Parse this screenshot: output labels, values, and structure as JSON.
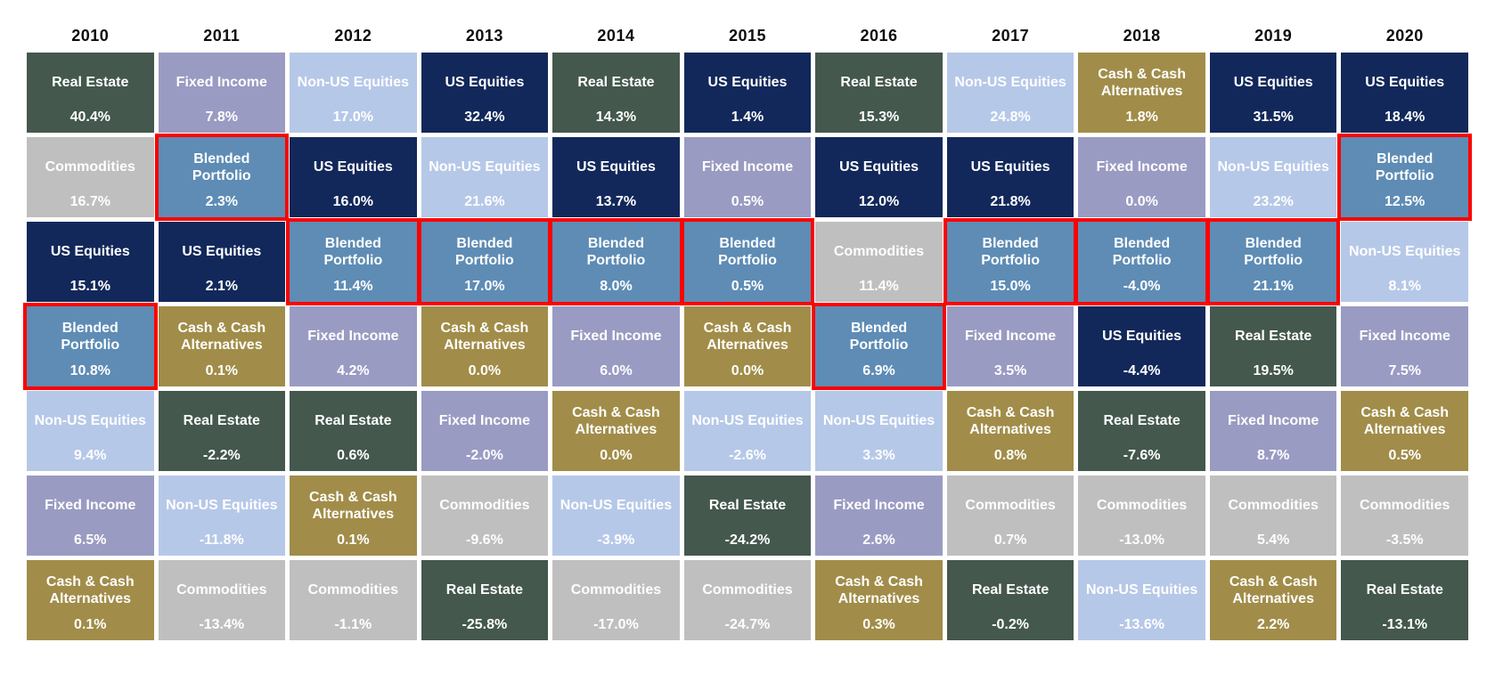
{
  "page": {
    "background_color": "#FFFFFF",
    "header_text_color": "#0D0D0D",
    "cell_text_color": "#FFFFFF"
  },
  "chart_data": {
    "type": "table",
    "description_layout": "asset-class-returns-quilt, columns are years, rows are performance rank",
    "highlight_border_color": "#FF0000",
    "highlighted_asset": "Blended Portfolio",
    "asset_colors": {
      "real-estate": "#44584E",
      "fixed-income": "#9A9BC2",
      "non-us-equities": "#B6C8E8",
      "us-equities": "#12285A",
      "commodities": "#BFBFBF",
      "cash": "#A18D49",
      "blended": "#5E8CB5"
    },
    "columns": [
      {
        "year": "2010",
        "cells": [
          {
            "label": "Real Estate",
            "value": "40.4%",
            "asset": "real-estate",
            "highlight": false
          },
          {
            "label": "Commodities",
            "value": "16.7%",
            "asset": "commodities",
            "highlight": false
          },
          {
            "label": "US Equities",
            "value": "15.1%",
            "asset": "us-equities",
            "highlight": false
          },
          {
            "label": "Blended Portfolio",
            "value": "10.8%",
            "asset": "blended",
            "highlight": true
          },
          {
            "label": "Non-US Equities",
            "value": "9.4%",
            "asset": "non-us-equities",
            "highlight": false
          },
          {
            "label": "Fixed Income",
            "value": "6.5%",
            "asset": "fixed-income",
            "highlight": false
          },
          {
            "label": "Cash & Cash Alternatives",
            "value": "0.1%",
            "asset": "cash",
            "highlight": false
          }
        ]
      },
      {
        "year": "2011",
        "cells": [
          {
            "label": "Fixed Income",
            "value": "7.8%",
            "asset": "fixed-income",
            "highlight": false
          },
          {
            "label": "Blended Portfolio",
            "value": "2.3%",
            "asset": "blended",
            "highlight": true
          },
          {
            "label": "US Equities",
            "value": "2.1%",
            "asset": "us-equities",
            "highlight": false
          },
          {
            "label": "Cash & Cash Alternatives",
            "value": "0.1%",
            "asset": "cash",
            "highlight": false
          },
          {
            "label": "Real Estate",
            "value": "-2.2%",
            "asset": "real-estate",
            "highlight": false
          },
          {
            "label": "Non-US Equities",
            "value": "-11.8%",
            "asset": "non-us-equities",
            "highlight": false
          },
          {
            "label": "Commodities",
            "value": "-13.4%",
            "asset": "commodities",
            "highlight": false
          }
        ]
      },
      {
        "year": "2012",
        "cells": [
          {
            "label": "Non-US Equities",
            "value": "17.0%",
            "asset": "non-us-equities",
            "highlight": false
          },
          {
            "label": "US Equities",
            "value": "16.0%",
            "asset": "us-equities",
            "highlight": false
          },
          {
            "label": "Blended Portfolio",
            "value": "11.4%",
            "asset": "blended",
            "highlight": true
          },
          {
            "label": "Fixed Income",
            "value": "4.2%",
            "asset": "fixed-income",
            "highlight": false
          },
          {
            "label": "Real Estate",
            "value": "0.6%",
            "asset": "real-estate",
            "highlight": false
          },
          {
            "label": "Cash & Cash Alternatives",
            "value": "0.1%",
            "asset": "cash",
            "highlight": false
          },
          {
            "label": "Commodities",
            "value": "-1.1%",
            "asset": "commodities",
            "highlight": false
          }
        ]
      },
      {
        "year": "2013",
        "cells": [
          {
            "label": "US Equities",
            "value": "32.4%",
            "asset": "us-equities",
            "highlight": false
          },
          {
            "label": "Non-US Equities",
            "value": "21.6%",
            "asset": "non-us-equities",
            "highlight": false
          },
          {
            "label": "Blended Portfolio",
            "value": "17.0%",
            "asset": "blended",
            "highlight": true
          },
          {
            "label": "Cash & Cash Alternatives",
            "value": "0.0%",
            "asset": "cash",
            "highlight": false
          },
          {
            "label": "Fixed Income",
            "value": "-2.0%",
            "asset": "fixed-income",
            "highlight": false
          },
          {
            "label": "Commodities",
            "value": "-9.6%",
            "asset": "commodities",
            "highlight": false
          },
          {
            "label": "Real Estate",
            "value": "-25.8%",
            "asset": "real-estate",
            "highlight": false
          }
        ]
      },
      {
        "year": "2014",
        "cells": [
          {
            "label": "Real Estate",
            "value": "14.3%",
            "asset": "real-estate",
            "highlight": false
          },
          {
            "label": "US Equities",
            "value": "13.7%",
            "asset": "us-equities",
            "highlight": false
          },
          {
            "label": "Blended Portfolio",
            "value": "8.0%",
            "asset": "blended",
            "highlight": true
          },
          {
            "label": "Fixed Income",
            "value": "6.0%",
            "asset": "fixed-income",
            "highlight": false
          },
          {
            "label": "Cash & Cash Alternatives",
            "value": "0.0%",
            "asset": "cash",
            "highlight": false
          },
          {
            "label": "Non-US Equities",
            "value": "-3.9%",
            "asset": "non-us-equities",
            "highlight": false
          },
          {
            "label": "Commodities",
            "value": "-17.0%",
            "asset": "commodities",
            "highlight": false
          }
        ]
      },
      {
        "year": "2015",
        "cells": [
          {
            "label": "US Equities",
            "value": "1.4%",
            "asset": "us-equities",
            "highlight": false
          },
          {
            "label": "Fixed Income",
            "value": "0.5%",
            "asset": "fixed-income",
            "highlight": false
          },
          {
            "label": "Blended Portfolio",
            "value": "0.5%",
            "asset": "blended",
            "highlight": true
          },
          {
            "label": "Cash & Cash Alternatives",
            "value": "0.0%",
            "asset": "cash",
            "highlight": false
          },
          {
            "label": "Non-US Equities",
            "value": "-2.6%",
            "asset": "non-us-equities",
            "highlight": false
          },
          {
            "label": "Real Estate",
            "value": "-24.2%",
            "asset": "real-estate",
            "highlight": false
          },
          {
            "label": "Commodities",
            "value": "-24.7%",
            "asset": "commodities",
            "highlight": false
          }
        ]
      },
      {
        "year": "2016",
        "cells": [
          {
            "label": "Real Estate",
            "value": "15.3%",
            "asset": "real-estate",
            "highlight": false
          },
          {
            "label": "US Equities",
            "value": "12.0%",
            "asset": "us-equities",
            "highlight": false
          },
          {
            "label": "Commodities",
            "value": "11.4%",
            "asset": "commodities",
            "highlight": false
          },
          {
            "label": "Blended Portfolio",
            "value": "6.9%",
            "asset": "blended",
            "highlight": true
          },
          {
            "label": "Non-US Equities",
            "value": "3.3%",
            "asset": "non-us-equities",
            "highlight": false
          },
          {
            "label": "Fixed Income",
            "value": "2.6%",
            "asset": "fixed-income",
            "highlight": false
          },
          {
            "label": "Cash & Cash Alternatives",
            "value": "0.3%",
            "asset": "cash",
            "highlight": false
          }
        ]
      },
      {
        "year": "2017",
        "cells": [
          {
            "label": "Non-US Equities",
            "value": "24.8%",
            "asset": "non-us-equities",
            "highlight": false
          },
          {
            "label": "US Equities",
            "value": "21.8%",
            "asset": "us-equities",
            "highlight": false
          },
          {
            "label": "Blended Portfolio",
            "value": "15.0%",
            "asset": "blended",
            "highlight": true
          },
          {
            "label": "Fixed Income",
            "value": "3.5%",
            "asset": "fixed-income",
            "highlight": false
          },
          {
            "label": "Cash & Cash Alternatives",
            "value": "0.8%",
            "asset": "cash",
            "highlight": false
          },
          {
            "label": "Commodities",
            "value": "0.7%",
            "asset": "commodities",
            "highlight": false
          },
          {
            "label": "Real Estate",
            "value": "-0.2%",
            "asset": "real-estate",
            "highlight": false
          }
        ]
      },
      {
        "year": "2018",
        "cells": [
          {
            "label": "Cash & Cash Alternatives",
            "value": "1.8%",
            "asset": "cash",
            "highlight": false
          },
          {
            "label": "Fixed Income",
            "value": "0.0%",
            "asset": "fixed-income",
            "highlight": false
          },
          {
            "label": "Blended Portfolio",
            "value": "-4.0%",
            "asset": "blended",
            "highlight": true
          },
          {
            "label": "US Equities",
            "value": "-4.4%",
            "asset": "us-equities",
            "highlight": false
          },
          {
            "label": "Real Estate",
            "value": "-7.6%",
            "asset": "real-estate",
            "highlight": false
          },
          {
            "label": "Commodities",
            "value": "-13.0%",
            "asset": "commodities",
            "highlight": false
          },
          {
            "label": "Non-US Equities",
            "value": "-13.6%",
            "asset": "non-us-equities",
            "highlight": false
          }
        ]
      },
      {
        "year": "2019",
        "cells": [
          {
            "label": "US Equities",
            "value": "31.5%",
            "asset": "us-equities",
            "highlight": false
          },
          {
            "label": "Non-US Equities",
            "value": "23.2%",
            "asset": "non-us-equities",
            "highlight": false
          },
          {
            "label": "Blended Portfolio",
            "value": "21.1%",
            "asset": "blended",
            "highlight": true
          },
          {
            "label": "Real Estate",
            "value": "19.5%",
            "asset": "real-estate",
            "highlight": false
          },
          {
            "label": "Fixed Income",
            "value": "8.7%",
            "asset": "fixed-income",
            "highlight": false
          },
          {
            "label": "Commodities",
            "value": "5.4%",
            "asset": "commodities",
            "highlight": false
          },
          {
            "label": "Cash & Cash Alternatives",
            "value": "2.2%",
            "asset": "cash",
            "highlight": false
          }
        ]
      },
      {
        "year": "2020",
        "cells": [
          {
            "label": "US Equities",
            "value": "18.4%",
            "asset": "us-equities",
            "highlight": false
          },
          {
            "label": "Blended Portfolio",
            "value": "12.5%",
            "asset": "blended",
            "highlight": true
          },
          {
            "label": "Non-US Equities",
            "value": "8.1%",
            "asset": "non-us-equities",
            "highlight": false
          },
          {
            "label": "Fixed Income",
            "value": "7.5%",
            "asset": "fixed-income",
            "highlight": false
          },
          {
            "label": "Cash & Cash Alternatives",
            "value": "0.5%",
            "asset": "cash",
            "highlight": false
          },
          {
            "label": "Commodities",
            "value": "-3.5%",
            "asset": "commodities",
            "highlight": false
          },
          {
            "label": "Real Estate",
            "value": "-13.1%",
            "asset": "real-estate",
            "highlight": false
          }
        ]
      }
    ]
  }
}
